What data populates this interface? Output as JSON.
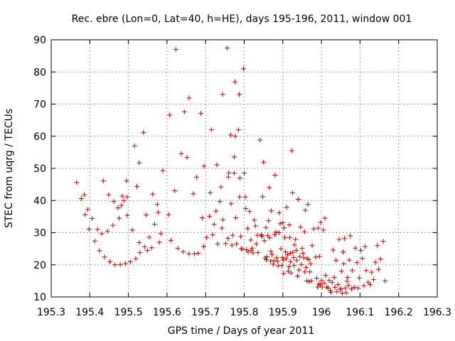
{
  "chart_data": {
    "type": "scatter",
    "title": "Rec. ebre (Lon=0, Lat=40, h=HE), days 195-196, 2011, window 001",
    "xlabel": "GPS time / Days of year 2011",
    "ylabel": "STEC from uqrg / TECUs",
    "xlim": [
      195.3,
      196.3
    ],
    "ylim": [
      10,
      90
    ],
    "xticks": [
      195.3,
      195.4,
      195.5,
      195.6,
      195.7,
      195.8,
      195.9,
      196.0,
      196.1,
      196.2,
      196.3
    ],
    "xtick_labels": [
      "195.3",
      "195.4",
      "195.5",
      "195.6",
      "195.7",
      "195.8",
      "195.9",
      "196",
      "196.1",
      "196.2",
      "196.3"
    ],
    "yticks": [
      10,
      20,
      30,
      40,
      50,
      60,
      70,
      80,
      90
    ],
    "ytick_labels": [
      "10",
      "20",
      "30",
      "40",
      "50",
      "60",
      "70",
      "80",
      "90"
    ],
    "grid": true,
    "marker": "plus",
    "color": "#cc0000",
    "series": [
      {
        "name": "STEC",
        "points": [
          [
            195.366,
            45.6
          ],
          [
            195.378,
            40.6
          ],
          [
            195.386,
            41.8
          ],
          [
            195.388,
            35.6
          ],
          [
            195.395,
            37.2
          ],
          [
            195.398,
            31.1
          ],
          [
            195.406,
            34.4
          ],
          [
            195.413,
            27.4
          ],
          [
            195.42,
            31.0
          ],
          [
            195.425,
            24.4
          ],
          [
            195.431,
            29.7
          ],
          [
            195.435,
            46.1
          ],
          [
            195.438,
            22.4
          ],
          [
            195.446,
            30.5
          ],
          [
            195.449,
            41.8
          ],
          [
            195.452,
            21.0
          ],
          [
            195.46,
            32.3
          ],
          [
            195.462,
            39.7
          ],
          [
            195.465,
            20.0
          ],
          [
            195.473,
            37.7
          ],
          [
            195.476,
            34.5
          ],
          [
            195.479,
            20.1
          ],
          [
            195.482,
            38.5
          ],
          [
            195.484,
            41.4
          ],
          [
            195.488,
            40.0
          ],
          [
            195.492,
            20.4
          ],
          [
            195.495,
            46.1
          ],
          [
            195.497,
            41.1
          ],
          [
            195.497,
            35.4
          ],
          [
            195.505,
            21.0
          ],
          [
            195.51,
            30.8
          ],
          [
            195.516,
            57.0
          ],
          [
            195.519,
            21.9
          ],
          [
            195.522,
            44.4
          ],
          [
            195.528,
            51.7
          ],
          [
            195.528,
            26.9
          ],
          [
            195.53,
            23.8
          ],
          [
            195.539,
            61.2
          ],
          [
            195.542,
            25.6
          ],
          [
            195.546,
            35.5
          ],
          [
            195.549,
            24.5
          ],
          [
            195.554,
            28.6
          ],
          [
            195.56,
            25.3
          ],
          [
            195.563,
            42.0
          ],
          [
            195.568,
            32.6
          ],
          [
            195.575,
            38.8
          ],
          [
            195.577,
            36.3
          ],
          [
            195.58,
            27.0
          ],
          [
            195.584,
            29.7
          ],
          [
            195.589,
            49.3
          ],
          [
            195.604,
            35.6
          ],
          [
            195.607,
            66.6
          ],
          [
            195.61,
            27.6
          ],
          [
            195.62,
            43.0
          ],
          [
            195.623,
            87.0
          ],
          [
            195.628,
            25.1
          ],
          [
            195.637,
            54.6
          ],
          [
            195.642,
            24.1
          ],
          [
            195.645,
            67.6
          ],
          [
            195.652,
            53.4
          ],
          [
            195.657,
            71.9
          ],
          [
            195.657,
            23.4
          ],
          [
            195.668,
            42.1
          ],
          [
            195.671,
            23.4
          ],
          [
            195.677,
            47.3
          ],
          [
            195.681,
            23.6
          ],
          [
            195.688,
            67.1
          ],
          [
            195.691,
            34.6
          ],
          [
            195.695,
            25.7
          ],
          [
            195.696,
            50.7
          ],
          [
            195.703,
            28.5
          ],
          [
            195.71,
            35.1
          ],
          [
            195.712,
            42.4
          ],
          [
            195.715,
            62.0
          ],
          [
            195.718,
            29.3
          ],
          [
            195.722,
            32.6
          ],
          [
            195.727,
            36.7
          ],
          [
            195.729,
            51.1
          ],
          [
            195.731,
            26.5
          ],
          [
            195.737,
            39.7
          ],
          [
            195.74,
            44.2
          ],
          [
            195.742,
            31.4
          ],
          [
            195.744,
            73.0
          ],
          [
            195.745,
            34.0
          ],
          [
            195.752,
            26.6
          ],
          [
            195.756,
            87.4
          ],
          [
            195.758,
            28.2
          ],
          [
            195.759,
            47.3
          ],
          [
            195.76,
            48.6
          ],
          [
            195.765,
            60.4
          ],
          [
            195.766,
            39.0
          ],
          [
            195.768,
            26.1
          ],
          [
            195.77,
            29.2
          ],
          [
            195.774,
            53.6
          ],
          [
            195.774,
            48.5
          ],
          [
            195.776,
            76.9
          ],
          [
            195.777,
            60.0
          ],
          [
            195.778,
            34.6
          ],
          [
            195.78,
            26.5
          ],
          [
            195.785,
            62.0
          ],
          [
            195.787,
            73.0
          ],
          [
            195.788,
            41.1
          ],
          [
            195.789,
            47.0
          ],
          [
            195.791,
            28.8
          ],
          [
            195.792,
            25.0
          ],
          [
            195.795,
            24.9
          ],
          [
            195.798,
            81.0
          ],
          [
            195.8,
            48.5
          ],
          [
            195.803,
            41.1
          ],
          [
            195.804,
            37.5
          ],
          [
            195.806,
            24.7
          ],
          [
            195.809,
            31.3
          ],
          [
            195.81,
            24.0
          ],
          [
            195.814,
            36.6
          ],
          [
            195.817,
            27.7
          ],
          [
            195.818,
            24.5
          ],
          [
            195.821,
            25.2
          ],
          [
            195.823,
            23.7
          ],
          [
            195.826,
            33.9
          ],
          [
            195.829,
            32.1
          ],
          [
            195.831,
            26.5
          ],
          [
            195.834,
            29.2
          ],
          [
            195.836,
            23.8
          ],
          [
            195.841,
            58.8
          ],
          [
            195.844,
            29.3
          ],
          [
            195.846,
            28.9
          ],
          [
            195.848,
            41.2
          ],
          [
            195.85,
            51.9
          ],
          [
            195.852,
            27.5
          ],
          [
            195.854,
            22.1
          ],
          [
            195.856,
            31.6
          ],
          [
            195.857,
            21.6
          ],
          [
            195.859,
            22.5
          ],
          [
            195.861,
            29.1
          ],
          [
            195.863,
            33.7
          ],
          [
            195.865,
            44.0
          ],
          [
            195.866,
            28.4
          ],
          [
            195.868,
            21.2
          ],
          [
            195.869,
            24.2
          ],
          [
            195.87,
            36.8
          ],
          [
            195.872,
            23.2
          ],
          [
            195.875,
            20.2
          ],
          [
            195.877,
            21.3
          ],
          [
            195.879,
            29.4
          ],
          [
            195.88,
            47.9
          ],
          [
            195.882,
            30.2
          ],
          [
            195.884,
            22.2
          ],
          [
            195.886,
            21.1
          ],
          [
            195.888,
            19.7
          ],
          [
            195.89,
            30.0
          ],
          [
            195.891,
            36.2
          ],
          [
            195.893,
            32.8
          ],
          [
            195.895,
            25.0
          ],
          [
            195.898,
            19.8
          ],
          [
            195.899,
            22.3
          ],
          [
            195.9,
            33.1
          ],
          [
            195.901,
            21.5
          ],
          [
            195.902,
            17.3
          ],
          [
            195.903,
            31.5
          ],
          [
            195.905,
            28.5
          ],
          [
            195.907,
            24.0
          ],
          [
            195.909,
            21.9
          ],
          [
            195.91,
            37.9
          ],
          [
            195.912,
            23.1
          ],
          [
            195.914,
            18.0
          ],
          [
            195.916,
            19.4
          ],
          [
            195.917,
            32.4
          ],
          [
            195.918,
            28.5
          ],
          [
            195.919,
            23.6
          ],
          [
            195.92,
            21.0
          ],
          [
            195.921,
            17.5
          ],
          [
            195.923,
            55.5
          ],
          [
            195.925,
            42.4
          ],
          [
            195.926,
            23.9
          ],
          [
            195.928,
            22.3
          ],
          [
            195.929,
            19.8
          ],
          [
            195.93,
            26.2
          ],
          [
            195.933,
            27.9
          ],
          [
            195.935,
            24.5
          ],
          [
            195.936,
            21.4
          ],
          [
            195.938,
            16.5
          ],
          [
            195.94,
            40.4
          ],
          [
            195.942,
            18.4
          ],
          [
            195.944,
            22.6
          ],
          [
            195.946,
            31.7
          ],
          [
            195.948,
            20.1
          ],
          [
            195.95,
            25.1
          ],
          [
            195.952,
            23.6
          ],
          [
            195.954,
            22.2
          ],
          [
            195.956,
            30.3
          ],
          [
            195.957,
            17.8
          ],
          [
            195.958,
            37.0
          ],
          [
            195.96,
            19.2
          ],
          [
            195.962,
            15.0
          ],
          [
            195.963,
            22.0
          ],
          [
            195.965,
            38.8
          ],
          [
            195.967,
            21.6
          ],
          [
            195.968,
            14.8
          ],
          [
            195.97,
            17.8
          ],
          [
            195.972,
            20.3
          ],
          [
            195.974,
            15.0
          ],
          [
            195.976,
            26.0
          ],
          [
            195.98,
            31.2
          ],
          [
            195.985,
            22.4
          ],
          [
            195.988,
            15.8
          ],
          [
            195.99,
            13.1
          ],
          [
            195.992,
            31.4
          ],
          [
            195.993,
            14.0
          ],
          [
            195.995,
            22.6
          ],
          [
            195.997,
            13.8
          ],
          [
            195.998,
            33.2
          ],
          [
            196.0,
            15.1
          ],
          [
            196.002,
            13.1
          ],
          [
            196.005,
            30.8
          ],
          [
            196.007,
            14.3
          ],
          [
            196.009,
            34.5
          ],
          [
            196.011,
            16.7
          ],
          [
            196.014,
            13.1
          ],
          [
            196.017,
            12.8
          ],
          [
            196.02,
            15.1
          ],
          [
            196.023,
            12.0
          ],
          [
            196.025,
            11.4
          ],
          [
            196.028,
            14.5
          ],
          [
            196.03,
            24.6
          ],
          [
            196.033,
            16.1
          ],
          [
            196.035,
            13.0
          ],
          [
            196.038,
            21.4
          ],
          [
            196.04,
            11.7
          ],
          [
            196.043,
            13.9
          ],
          [
            196.046,
            27.9
          ],
          [
            196.048,
            12.4
          ],
          [
            196.051,
            12.5
          ],
          [
            196.052,
            18.0
          ],
          [
            196.054,
            11.2
          ],
          [
            196.056,
            24.0
          ],
          [
            196.058,
            20.3
          ],
          [
            196.06,
            28.2
          ],
          [
            196.062,
            12.8
          ],
          [
            196.064,
            11.3
          ],
          [
            196.066,
            14.9
          ],
          [
            196.068,
            16.1
          ],
          [
            196.07,
            13.6
          ],
          [
            196.072,
            21.5
          ],
          [
            196.075,
            29.0
          ],
          [
            196.078,
            12.5
          ],
          [
            196.08,
            18.2
          ],
          [
            196.085,
            13.0
          ],
          [
            196.088,
            25.2
          ],
          [
            196.092,
            20.7
          ],
          [
            196.095,
            12.8
          ],
          [
            196.098,
            15.9
          ],
          [
            196.102,
            24.5
          ],
          [
            196.106,
            22.0
          ],
          [
            196.11,
            13.5
          ],
          [
            196.113,
            25.7
          ],
          [
            196.116,
            18.2
          ],
          [
            196.121,
            14.6
          ],
          [
            196.126,
            13.9
          ],
          [
            196.13,
            17.7
          ],
          [
            196.135,
            15.4
          ],
          [
            196.14,
            20.8
          ],
          [
            196.145,
            26.0
          ],
          [
            196.148,
            18.6
          ],
          [
            196.153,
            21.8
          ],
          [
            196.16,
            27.3
          ],
          [
            196.165,
            15.0
          ]
        ]
      }
    ]
  }
}
